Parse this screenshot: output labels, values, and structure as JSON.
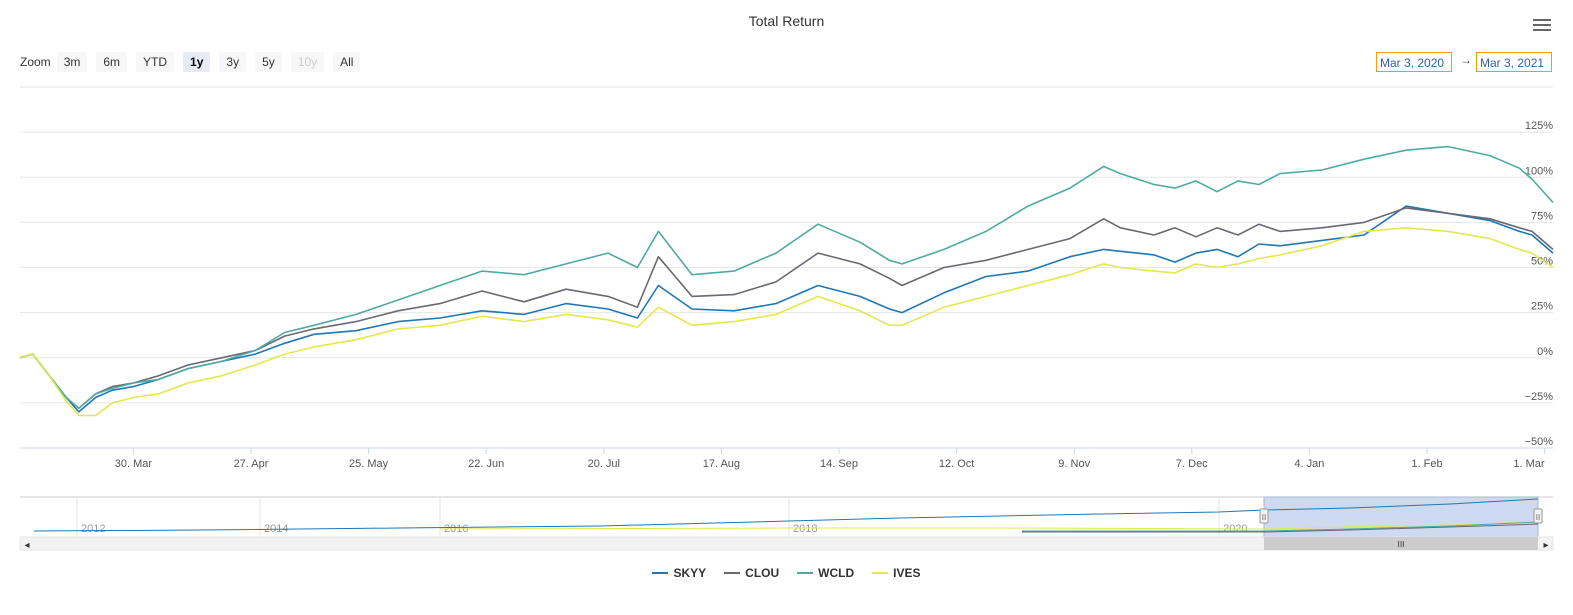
{
  "chart_data": {
    "type": "line",
    "title": "Total Return",
    "x_tick_labels": [
      "30. Mar",
      "27. Apr",
      "25. May",
      "22. Jun",
      "20. Jul",
      "17. Aug",
      "14. Sep",
      "12. Oct",
      "9. Nov",
      "7. Dec",
      "4. Jan",
      "1. Feb",
      "1. Mar"
    ],
    "y_tick_labels": [
      "125%",
      "100%",
      "75%",
      "50%",
      "25%",
      "0%",
      "−25%",
      "−50%"
    ],
    "ylim": [
      -50,
      150
    ],
    "x_range_days": [
      0,
      365
    ],
    "y_unit": "%",
    "grid": "horizontal",
    "legend_position": "bottom-center",
    "series": [
      {
        "name": "SKYY",
        "color": "#1f77b4",
        "x": [
          0,
          3,
          7,
          11,
          14,
          18,
          22,
          27,
          33,
          40,
          48,
          56,
          63,
          70,
          80,
          90,
          100,
          110,
          120,
          130,
          140,
          147,
          152,
          160,
          170,
          180,
          190,
          200,
          207,
          210,
          220,
          230,
          240,
          250,
          258,
          262,
          270,
          275,
          280,
          285,
          290,
          295,
          300,
          310,
          320,
          330,
          340,
          350,
          357,
          360,
          365
        ],
        "y": [
          0,
          2,
          -10,
          -22,
          -30,
          -22,
          -18,
          -16,
          -12,
          -6,
          -2,
          2,
          8,
          13,
          15,
          20,
          22,
          26,
          24,
          30,
          27,
          22,
          40,
          27,
          26,
          30,
          40,
          34,
          27,
          25,
          36,
          45,
          48,
          56,
          60,
          59,
          57,
          53,
          58,
          60,
          56,
          63,
          62,
          65,
          68,
          84,
          80,
          76,
          70,
          68,
          58
        ]
      },
      {
        "name": "CLOU",
        "color": "#6b6873",
        "x": [
          0,
          3,
          7,
          11,
          14,
          18,
          22,
          27,
          33,
          40,
          48,
          56,
          63,
          70,
          80,
          90,
          100,
          110,
          120,
          130,
          140,
          147,
          152,
          160,
          170,
          180,
          190,
          200,
          207,
          210,
          220,
          230,
          240,
          250,
          258,
          262,
          270,
          275,
          280,
          285,
          290,
          295,
          300,
          310,
          320,
          330,
          340,
          350,
          357,
          360,
          365
        ],
        "y": [
          0,
          2,
          -10,
          -22,
          -28,
          -20,
          -16,
          -14,
          -10,
          -4,
          0,
          4,
          12,
          16,
          20,
          26,
          30,
          37,
          31,
          38,
          34,
          28,
          56,
          34,
          35,
          42,
          58,
          52,
          44,
          40,
          50,
          54,
          60,
          66,
          77,
          72,
          68,
          72,
          67,
          72,
          68,
          74,
          70,
          72,
          75,
          83,
          80,
          77,
          72,
          70,
          60
        ]
      },
      {
        "name": "WCLD",
        "color": "#4eaaa2",
        "x": [
          0,
          3,
          7,
          11,
          14,
          18,
          22,
          27,
          33,
          40,
          48,
          56,
          63,
          70,
          80,
          90,
          100,
          110,
          120,
          130,
          140,
          147,
          152,
          160,
          170,
          180,
          190,
          200,
          207,
          210,
          220,
          230,
          240,
          250,
          258,
          262,
          270,
          275,
          280,
          285,
          290,
          295,
          300,
          310,
          320,
          330,
          340,
          350,
          357,
          360,
          365
        ],
        "y": [
          0,
          2,
          -10,
          -22,
          -28,
          -20,
          -17,
          -14,
          -12,
          -6,
          -2,
          4,
          14,
          18,
          24,
          32,
          40,
          48,
          46,
          52,
          58,
          50,
          70,
          46,
          48,
          58,
          74,
          64,
          54,
          52,
          60,
          70,
          84,
          94,
          106,
          102,
          96,
          94,
          98,
          92,
          98,
          96,
          102,
          104,
          110,
          115,
          117,
          112,
          105,
          99,
          86
        ]
      },
      {
        "name": "IVES",
        "color": "#e2e84e",
        "x": [
          0,
          3,
          7,
          11,
          14,
          18,
          22,
          27,
          33,
          40,
          48,
          56,
          63,
          70,
          80,
          90,
          100,
          110,
          120,
          130,
          140,
          147,
          152,
          160,
          170,
          180,
          190,
          200,
          207,
          210,
          220,
          230,
          240,
          250,
          258,
          262,
          270,
          275,
          280,
          285,
          290,
          295,
          300,
          310,
          320,
          330,
          340,
          350,
          357,
          360,
          365
        ],
        "y": [
          0,
          2,
          -10,
          -24,
          -32,
          -32,
          -25,
          -22,
          -20,
          -14,
          -10,
          -4,
          2,
          6,
          10,
          16,
          18,
          23,
          20,
          24,
          21,
          17,
          28,
          18,
          20,
          24,
          34,
          26,
          18,
          18,
          28,
          34,
          40,
          46,
          52,
          50,
          48,
          47,
          52,
          50,
          52,
          55,
          57,
          62,
          70,
          72,
          70,
          66,
          60,
          58,
          50
        ]
      }
    ]
  },
  "header": {
    "menu_icon": "hamburger-menu-icon"
  },
  "zoom": {
    "label": "Zoom",
    "buttons": [
      {
        "label": "3m",
        "state": "normal"
      },
      {
        "label": "6m",
        "state": "normal"
      },
      {
        "label": "YTD",
        "state": "normal"
      },
      {
        "label": "1y",
        "state": "active"
      },
      {
        "label": "3y",
        "state": "normal"
      },
      {
        "label": "5y",
        "state": "normal"
      },
      {
        "label": "10y",
        "state": "disabled"
      },
      {
        "label": "All",
        "state": "normal"
      }
    ]
  },
  "range": {
    "from": "Mar 3, 2020",
    "arrow": "→",
    "to": "Mar 3, 2021"
  },
  "navigator": {
    "year_labels": [
      "2012",
      "2014",
      "2016",
      "2018",
      "2020"
    ],
    "left_arrow": "◂",
    "right_arrow": "▸",
    "grip": "III",
    "handle_grip": "ll",
    "selection_color": "#c6d3ec"
  }
}
